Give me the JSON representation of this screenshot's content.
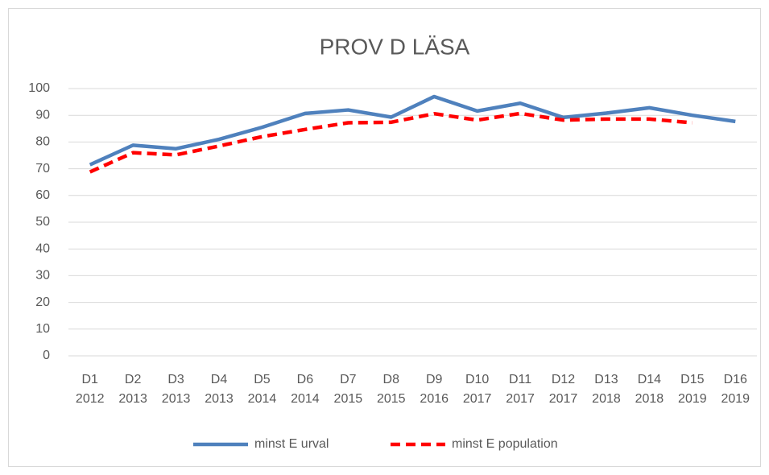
{
  "chart_data": {
    "type": "line",
    "title": "PROV D LÄSA",
    "categories": [
      "D1 2012",
      "D2 2013",
      "D3 2013",
      "D4 2013",
      "D5 2014",
      "D6 2014",
      "D7 2015",
      "D8 2015",
      "D9 2016",
      "D10 2017",
      "D11 2017",
      "D12 2017",
      "D13 2018",
      "D14 2018",
      "D15 2019",
      "D16 2019"
    ],
    "series": [
      {
        "name": "minst E urval",
        "color": "#4f81bd",
        "dash": false,
        "values": [
          71.5,
          78.8,
          77.5,
          81,
          85.5,
          90.7,
          92,
          89.3,
          97,
          91.6,
          94.5,
          89.2,
          90.8,
          92.8,
          90,
          87.7
        ]
      },
      {
        "name": "minst E population",
        "color": "#ff0000",
        "dash": true,
        "values": [
          68.8,
          76,
          75.2,
          78.5,
          82,
          84.7,
          87.2,
          87.4,
          90.6,
          88.2,
          90.7,
          88.2,
          88.6,
          88.6,
          87.2,
          null
        ]
      }
    ],
    "ylim": [
      0,
      100
    ],
    "yticks": [
      0,
      10,
      20,
      30,
      40,
      50,
      60,
      70,
      80,
      90,
      100
    ],
    "grid": true,
    "legend": "bottom"
  }
}
